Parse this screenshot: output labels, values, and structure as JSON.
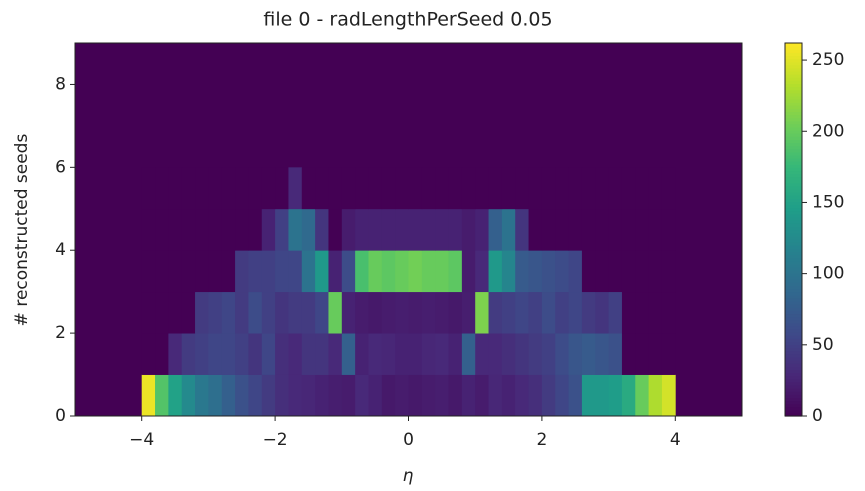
{
  "chart_data": {
    "type": "heatmap",
    "title": "file 0 - radLengthPerSeed 0.05",
    "xlabel": "η",
    "ylabel": "# reconstructed seeds",
    "x_edges": [
      -4,
      -3.8,
      -3.6,
      -3.4,
      -3.2,
      -3,
      -2.8,
      -2.6,
      -2.4,
      -2.2,
      -2,
      -1.8,
      -1.6,
      -1.4,
      -1.2,
      -1,
      -0.8,
      -0.6,
      -0.4,
      -0.2,
      0,
      0.2,
      0.4,
      0.6,
      0.8,
      1,
      1.2,
      1.4,
      1.6,
      1.8,
      2,
      2.2,
      2.4,
      2.6,
      2.8,
      3,
      3.2,
      3.4,
      3.6,
      3.8,
      4
    ],
    "y_edges": [
      0,
      1,
      2,
      3,
      4,
      5,
      6
    ],
    "z": [
      [
        255,
        190,
        150,
        125,
        105,
        95,
        80,
        65,
        55,
        45,
        35,
        30,
        28,
        25,
        22,
        20,
        30,
        25,
        18,
        20,
        18,
        20,
        22,
        18,
        25,
        20,
        28,
        25,
        30,
        35,
        45,
        55,
        65,
        140,
        140,
        145,
        160,
        200,
        230,
        245
      ],
      [
        0,
        0,
        30,
        45,
        50,
        55,
        55,
        50,
        40,
        55,
        35,
        30,
        40,
        40,
        30,
        80,
        25,
        30,
        28,
        25,
        25,
        28,
        30,
        25,
        80,
        30,
        30,
        35,
        40,
        45,
        50,
        60,
        70,
        75,
        70,
        65,
        0,
        0,
        0,
        0
      ],
      [
        0,
        0,
        0,
        0,
        45,
        50,
        55,
        45,
        60,
        50,
        40,
        45,
        45,
        55,
        200,
        25,
        20,
        18,
        20,
        22,
        20,
        22,
        20,
        18,
        22,
        210,
        45,
        50,
        55,
        50,
        60,
        50,
        55,
        45,
        40,
        50,
        0,
        0,
        0,
        0
      ],
      [
        0,
        0,
        0,
        0,
        0,
        0,
        0,
        45,
        50,
        50,
        55,
        55,
        100,
        140,
        25,
        60,
        185,
        200,
        195,
        200,
        205,
        200,
        200,
        195,
        20,
        30,
        140,
        120,
        75,
        70,
        65,
        60,
        55,
        0,
        0,
        0,
        0,
        0,
        0,
        0
      ],
      [
        0,
        0,
        0,
        0,
        0,
        0,
        0,
        0,
        0,
        25,
        50,
        100,
        90,
        40,
        0,
        20,
        25,
        25,
        25,
        25,
        25,
        25,
        25,
        25,
        20,
        25,
        80,
        100,
        40,
        0,
        0,
        0,
        0,
        0,
        0,
        0,
        0,
        0,
        0,
        0
      ],
      [
        0,
        0,
        0,
        0,
        0,
        0,
        0,
        0,
        0,
        0,
        0,
        30,
        0,
        0,
        0,
        0,
        0,
        0,
        0,
        0,
        0,
        0,
        0,
        0,
        0,
        0,
        0,
        0,
        0,
        0,
        0,
        0,
        0,
        0,
        0,
        0,
        0,
        0,
        0,
        0
      ]
    ],
    "xlim": [
      -5,
      5
    ],
    "ylim": [
      0,
      9
    ],
    "xticks": [
      {
        "value": -4,
        "label": "−4"
      },
      {
        "value": -2,
        "label": "−2"
      },
      0,
      2,
      4
    ],
    "yticks": [
      0,
      2,
      4,
      6,
      8
    ],
    "colormap": "viridis",
    "colorbar": {
      "lim": [
        0,
        262
      ],
      "ticks": [
        0,
        50,
        100,
        150,
        200,
        250
      ]
    }
  }
}
